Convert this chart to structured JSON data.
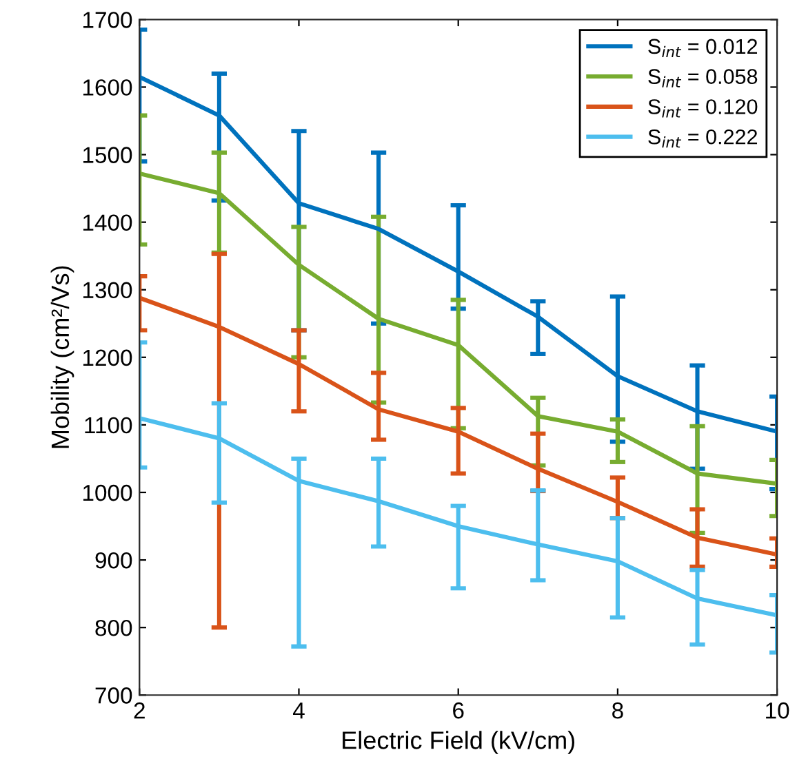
{
  "chart_data": {
    "type": "line",
    "xlabel": "Electric Field (kV/cm)",
    "ylabel": "Mobility (cm²/Vs)",
    "x": [
      2,
      3,
      4,
      5,
      6,
      7,
      8,
      9,
      10
    ],
    "xlim": [
      2,
      10
    ],
    "xticks": [
      2,
      4,
      6,
      8,
      10
    ],
    "ylim": [
      700,
      1700
    ],
    "yticks": [
      700,
      800,
      900,
      1000,
      1100,
      1200,
      1300,
      1400,
      1500,
      1600,
      1700
    ],
    "grid": false,
    "legend": "top right",
    "marker": "none",
    "line_style": "solid",
    "series": [
      {
        "name": "S$_{int}$ = 0.012",
        "color": "#0072bd",
        "values": [
          1615,
          1558,
          1428,
          1390,
          1327,
          1260,
          1172,
          1120,
          1090
        ],
        "errors": [
          [
            1490,
            1685
          ],
          [
            1432,
            1620
          ],
          [
            1240,
            1535
          ],
          [
            1250,
            1503
          ],
          [
            1272,
            1425
          ],
          [
            1205,
            1283
          ],
          [
            1075,
            1290
          ],
          [
            1035,
            1188
          ],
          [
            1005,
            1142
          ]
        ]
      },
      {
        "name": "S$_{int}$ = 0.058",
        "color": "#77ac30",
        "values": [
          1472,
          1443,
          1337,
          1257,
          1218,
          1113,
          1090,
          1028,
          1013
        ],
        "errors": [
          [
            1367,
            1558
          ],
          [
            1355,
            1503
          ],
          [
            1200,
            1393
          ],
          [
            1133,
            1408
          ],
          [
            1095,
            1285
          ],
          [
            1040,
            1140
          ],
          [
            1045,
            1108
          ],
          [
            940,
            1098
          ],
          [
            965,
            1048
          ]
        ]
      },
      {
        "name": "S$_{int}$ = 0.120",
        "color": "#d95319",
        "values": [
          1288,
          1245,
          1190,
          1123,
          1090,
          1035,
          986,
          933,
          908
        ],
        "errors": [
          [
            1240,
            1320
          ],
          [
            800,
            1353
          ],
          [
            1120,
            1240
          ],
          [
            1078,
            1177
          ],
          [
            1028,
            1125
          ],
          [
            1002,
            1087
          ],
          [
            962,
            1022
          ],
          [
            890,
            975
          ],
          [
            890,
            932
          ]
        ]
      },
      {
        "name": "S$_{int}$ = 0.222",
        "color": "#4dbeee",
        "values": [
          1110,
          1080,
          1017,
          987,
          950,
          923,
          898,
          843,
          818
        ],
        "errors": [
          [
            1037,
            1222
          ],
          [
            985,
            1132
          ],
          [
            772,
            1050
          ],
          [
            920,
            1050
          ],
          [
            858,
            980
          ],
          [
            870,
            1003
          ],
          [
            815,
            962
          ],
          [
            775,
            885
          ],
          [
            763,
            848
          ]
        ]
      }
    ]
  }
}
